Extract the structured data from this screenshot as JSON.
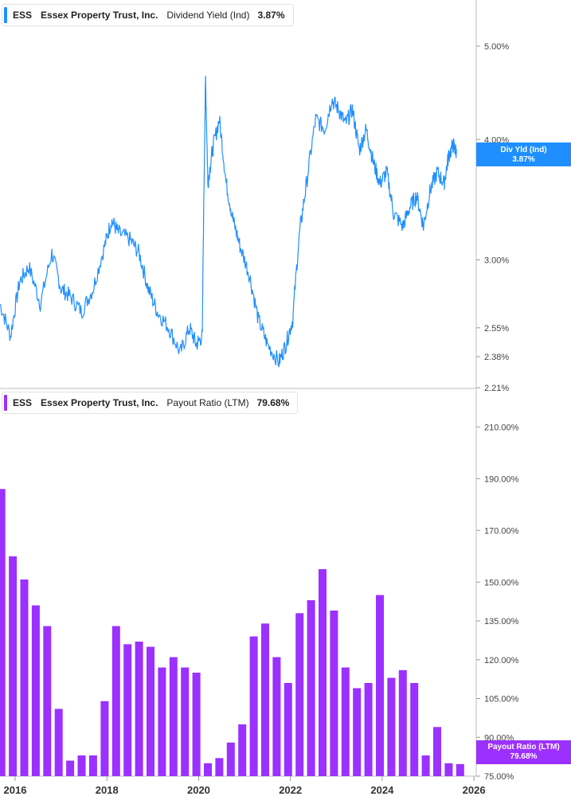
{
  "top_legend": {
    "ticker": "ESS",
    "company": "Essex Property Trust, Inc.",
    "metric": "Dividend Yield (Ind)",
    "value": "3.87%",
    "color": "#1f8fff"
  },
  "bottom_legend": {
    "ticker": "ESS",
    "company": "Essex Property Trust, Inc.",
    "metric": "Payout Ratio (LTM)",
    "value": "79.68%",
    "color": "#9b30ff"
  },
  "top_badge": {
    "label": "Div Yld (Ind)",
    "value": "3.87%",
    "color": "#1f8fff"
  },
  "bottom_badge": {
    "label": "Payout Ratio (LTM)",
    "value": "79.68%",
    "color": "#9b30ff"
  },
  "x_axis_labels": [
    "2016",
    "2018",
    "2020",
    "2022",
    "2024",
    "2026"
  ],
  "chart_data": [
    {
      "type": "line",
      "series": [
        {
          "name": "Dividend Yield (Ind)",
          "color": "#1f8fff",
          "x": [
            2015.67,
            2015.9,
            2016.1,
            2016.3,
            2016.55,
            2016.8,
            2017.0,
            2017.2,
            2017.45,
            2017.7,
            2017.95,
            2018.1,
            2018.25,
            2018.5,
            2018.7,
            2018.9,
            2019.1,
            2019.35,
            2019.6,
            2019.8,
            2019.95,
            2020.08,
            2020.15,
            2020.2,
            2020.3,
            2020.45,
            2020.6,
            2020.75,
            2020.9,
            2021.1,
            2021.3,
            2021.5,
            2021.75,
            2021.9,
            2022.05,
            2022.2,
            2022.35,
            2022.55,
            2022.75,
            2022.9,
            2023.05,
            2023.2,
            2023.35,
            2023.5,
            2023.65,
            2023.8,
            2023.95,
            2024.1,
            2024.25,
            2024.45,
            2024.6,
            2024.75,
            2024.9,
            2025.05,
            2025.2,
            2025.35,
            2025.45,
            2025.55,
            2025.62
          ],
          "y": [
            2.7,
            2.5,
            2.85,
            2.95,
            2.7,
            3.05,
            2.8,
            2.75,
            2.65,
            2.8,
            3.1,
            3.3,
            3.2,
            3.15,
            3.05,
            2.8,
            2.65,
            2.55,
            2.4,
            2.55,
            2.45,
            2.5,
            4.6,
            3.6,
            3.9,
            4.2,
            3.6,
            3.3,
            3.1,
            2.9,
            2.6,
            2.45,
            2.35,
            2.45,
            2.6,
            3.2,
            3.6,
            4.2,
            4.1,
            4.4,
            4.3,
            4.15,
            4.3,
            3.9,
            4.1,
            3.8,
            3.6,
            3.7,
            3.35,
            3.25,
            3.4,
            3.5,
            3.25,
            3.55,
            3.7,
            3.6,
            3.85,
            3.95,
            3.87
          ],
          "xlim": [
            2015.67,
            2026.05
          ],
          "ylim": [
            2.21,
            5.0
          ],
          "scale": "log",
          "y_tick_labels": [
            "5.00%",
            "4.00%",
            "3.00%",
            "2.55%",
            "2.38%",
            "2.21%"
          ],
          "y_ticks": [
            5.0,
            4.0,
            3.0,
            2.55,
            2.38,
            2.21
          ]
        }
      ]
    },
    {
      "type": "bar",
      "series": [
        {
          "name": "Payout Ratio (LTM)",
          "color": "#9b30ff",
          "x": [
            2015.7,
            2015.95,
            2016.2,
            2016.45,
            2016.7,
            2016.95,
            2017.2,
            2017.45,
            2017.7,
            2017.95,
            2018.2,
            2018.45,
            2018.7,
            2018.95,
            2019.2,
            2019.45,
            2019.7,
            2019.95,
            2020.2,
            2020.45,
            2020.7,
            2020.95,
            2021.2,
            2021.45,
            2021.7,
            2021.95,
            2022.2,
            2022.45,
            2022.7,
            2022.95,
            2023.2,
            2023.45,
            2023.7,
            2023.95,
            2024.2,
            2024.45,
            2024.7,
            2024.95,
            2025.2,
            2025.45,
            2025.7
          ],
          "values": [
            186,
            160,
            151,
            141,
            133,
            101,
            81,
            83,
            83,
            104,
            133,
            126,
            127,
            125,
            117,
            121,
            117,
            115,
            80,
            82,
            88,
            95,
            129,
            134,
            121,
            111,
            138,
            143,
            155,
            139,
            117,
            109,
            111,
            145,
            113,
            116,
            111,
            83,
            94,
            80,
            79.68
          ]
        }
      ],
      "xlim": [
        2015.67,
        2026.05
      ],
      "ylim": [
        75,
        215
      ],
      "y_tick_labels": [
        "210.00%",
        "190.00%",
        "170.00%",
        "150.00%",
        "135.00%",
        "120.00%",
        "105.00%",
        "90.00%",
        "75.00%"
      ],
      "y_ticks": [
        210,
        190,
        170,
        150,
        135,
        120,
        105,
        90,
        75
      ]
    }
  ]
}
